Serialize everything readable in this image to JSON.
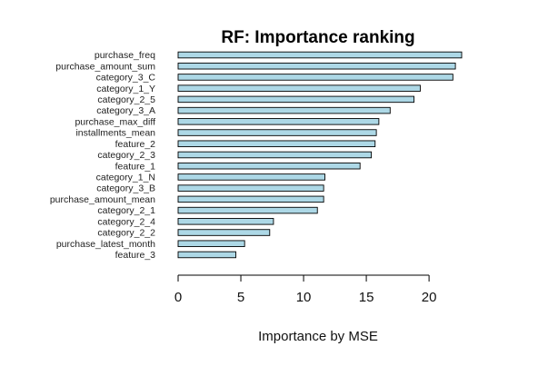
{
  "chart_data": {
    "type": "bar",
    "orientation": "horizontal",
    "title": "RF: Importance ranking",
    "xlabel": "Importance by MSE",
    "ylabel": "",
    "xlim": [
      0,
      22.6
    ],
    "xticks": [
      0,
      5,
      10,
      15,
      20
    ],
    "grid": false,
    "bar_color": "#add8e6",
    "categories": [
      "purchase_freq",
      "purchase_amount_sum",
      "category_3_C",
      "category_1_Y",
      "category_2_5",
      "category_3_A",
      "purchase_max_diff",
      "installments_mean",
      "feature_2",
      "category_2_3",
      "feature_1",
      "category_1_N",
      "category_3_B",
      "purchase_amount_mean",
      "category_2_1",
      "category_2_4",
      "category_2_2",
      "purchase_latest_month",
      "feature_3"
    ],
    "values": [
      22.6,
      22.1,
      21.9,
      19.3,
      18.8,
      16.9,
      16.0,
      15.8,
      15.7,
      15.4,
      14.5,
      11.7,
      11.6,
      11.6,
      11.1,
      7.6,
      7.3,
      5.3,
      4.6
    ]
  }
}
